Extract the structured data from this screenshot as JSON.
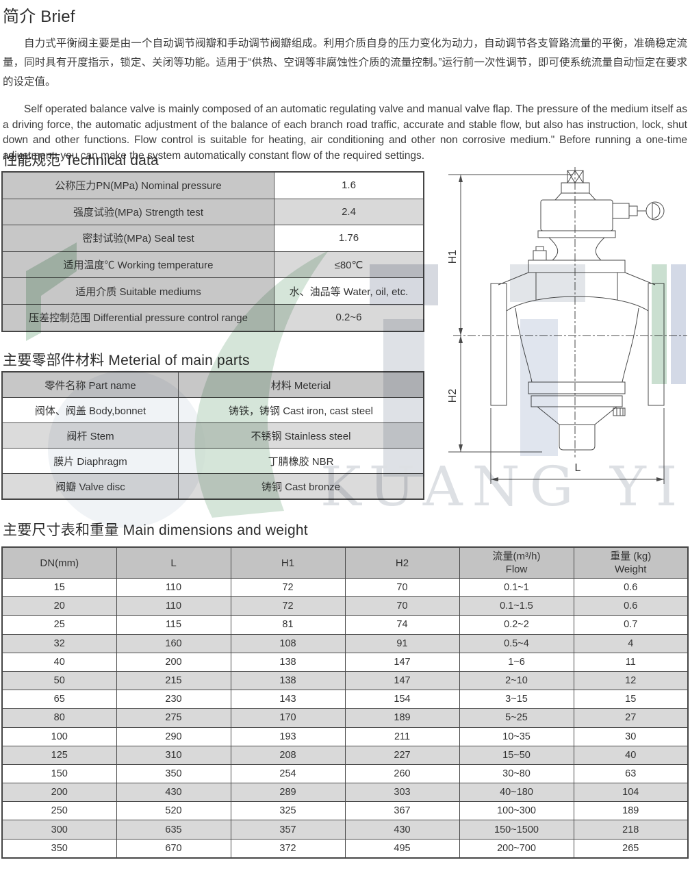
{
  "brief": {
    "heading": "简介 Brief",
    "zh": "自力式平衡阀主要是由一个自动调节阀瓣和手动调节阀瓣组成。利用介质自身的压力变化为动力，自动调节各支管路流量的平衡，准确稳定流量，同时具有开度指示，锁定、关闭等功能。适用于“供热、空调等非腐蚀性介质的流量控制。”运行前一次性调节，即可使系统流量自动恒定在要求的设定值。",
    "en": "Self operated balance valve is mainly composed of an automatic regulating valve and manual valve flap. The pressure of the medium itself as a driving force, the automatic adjustment of the balance of each branch road traffic, accurate and stable flow, but also has instruction, lock, shut down and other functions. Flow control is suitable for heating, air conditioning and other non corrosive medium.\" Before running a one-time adjustment, you can make the system automatically constant flow of the required settings."
  },
  "technical": {
    "heading": "性能规范 Technical data",
    "rows": [
      {
        "label": "公称压力PN(MPa) Nominal pressure",
        "value": "1.6"
      },
      {
        "label": "强度试验(MPa) Strength test",
        "value": "2.4"
      },
      {
        "label": "密封试验(MPa) Seal test",
        "value": "1.76"
      },
      {
        "label": "适用温度℃ Working temperature",
        "value": "≤80℃"
      },
      {
        "label": "适用介质 Suitable mediums",
        "value": "水、油品等 Water, oil, etc."
      },
      {
        "label": "压差控制范围 Differential pressure control range",
        "value": "0.2~6"
      }
    ]
  },
  "materials": {
    "heading": "主要零部件材料 Meterial of main parts",
    "columns": [
      "零件名称 Part name",
      "材料 Meterial"
    ],
    "rows": [
      [
        "阀体、阀盖 Body,bonnet",
        "铸铁，铸钢 Cast iron, cast steel"
      ],
      [
        "阀杆 Stem",
        "不锈钢 Stainless steel"
      ],
      [
        "膜片 Diaphragm",
        "丁腈橡胶 NBR"
      ],
      [
        "阀瓣 Valve disc",
        "铸铜 Cast bronze"
      ]
    ]
  },
  "dimensions": {
    "heading": "主要尺寸表和重量 Main dimensions and weight",
    "columns": [
      "DN(mm)",
      "L",
      "H1",
      "H2",
      "流量(m³/h)\nFlow",
      "重量 (kg)\nWeight"
    ],
    "rows": [
      [
        "15",
        "110",
        "72",
        "70",
        "0.1~1",
        "0.6"
      ],
      [
        "20",
        "110",
        "72",
        "70",
        "0.1~1.5",
        "0.6"
      ],
      [
        "25",
        "115",
        "81",
        "74",
        "0.2~2",
        "0.7"
      ],
      [
        "32",
        "160",
        "108",
        "91",
        "0.5~4",
        "4"
      ],
      [
        "40",
        "200",
        "138",
        "147",
        "1~6",
        "11"
      ],
      [
        "50",
        "215",
        "138",
        "147",
        "2~10",
        "12"
      ],
      [
        "65",
        "230",
        "143",
        "154",
        "3~15",
        "15"
      ],
      [
        "80",
        "275",
        "170",
        "189",
        "5~25",
        "27"
      ],
      [
        "100",
        "290",
        "193",
        "211",
        "10~35",
        "30"
      ],
      [
        "125",
        "310",
        "208",
        "227",
        "15~50",
        "40"
      ],
      [
        "150",
        "350",
        "254",
        "260",
        "30~80",
        "63"
      ],
      [
        "200",
        "430",
        "289",
        "303",
        "40~180",
        "104"
      ],
      [
        "250",
        "520",
        "325",
        "367",
        "100~300",
        "189"
      ],
      [
        "300",
        "635",
        "357",
        "430",
        "150~1500",
        "218"
      ],
      [
        "350",
        "670",
        "372",
        "495",
        "200~700",
        "265"
      ]
    ]
  },
  "drawing": {
    "dim_h1": "H1",
    "dim_h2": "H2",
    "dim_l": "L"
  },
  "watermark": {
    "text": "KUANG YI",
    "green": "#b9d4c1",
    "blue": "#c5cdde",
    "gray_blocks": "#c9cdd6",
    "letters": "#d2d6db"
  }
}
